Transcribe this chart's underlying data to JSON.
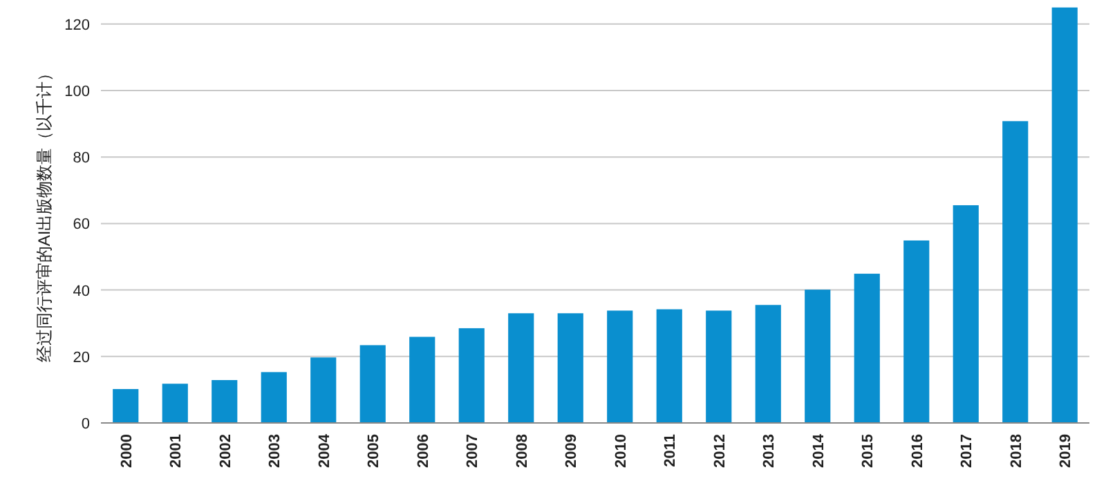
{
  "chart_data": {
    "type": "bar",
    "ylabel": "经过同行评审的AI出版物数量（以千计）",
    "categories": [
      "2000",
      "2001",
      "2002",
      "2003",
      "2004",
      "2005",
      "2006",
      "2007",
      "2008",
      "2009",
      "2010",
      "2011",
      "2012",
      "2013",
      "2014",
      "2015",
      "2016",
      "2017",
      "2018",
      "2019"
    ],
    "values": [
      10.2,
      11.8,
      12.9,
      15.3,
      19.7,
      23.4,
      25.9,
      28.5,
      33.0,
      33.0,
      33.8,
      34.2,
      33.8,
      35.5,
      40.1,
      44.9,
      54.9,
      65.5,
      90.8,
      125
    ],
    "color": "#0a8fcf",
    "ylim": [
      0,
      126
    ],
    "yticks": [
      0,
      20,
      40,
      60,
      80,
      100,
      120
    ],
    "grid": "y"
  }
}
